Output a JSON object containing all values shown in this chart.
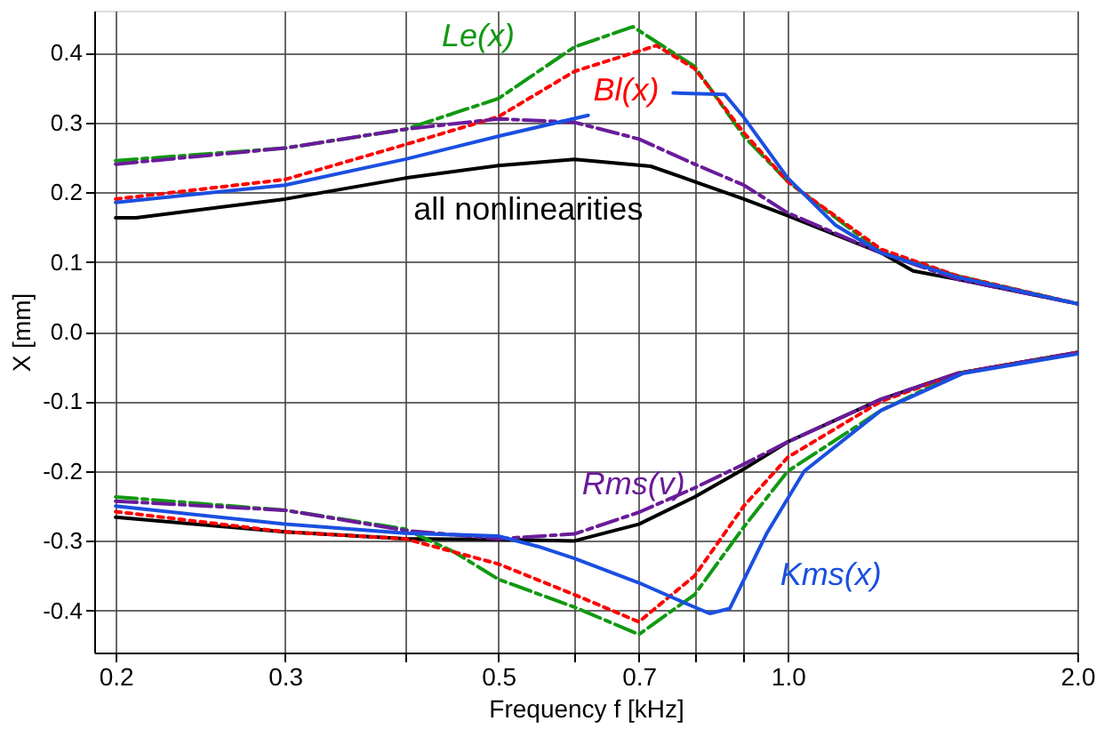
{
  "chart_data": {
    "type": "line",
    "xlabel": "Frequency f [kHz]",
    "ylabel": "X [mm]",
    "log": "x",
    "grid": true,
    "xlim": [
      0.19,
      2.0
    ],
    "ylim": [
      -0.46,
      0.46
    ],
    "xticks": [
      0.2,
      0.3,
      {
        "value": 0.4,
        "label": null
      },
      0.5,
      {
        "value": 0.6,
        "label": null
      },
      0.7,
      {
        "value": 0.8,
        "label": null
      },
      {
        "value": 0.9,
        "label": null
      },
      {
        "value": 1,
        "label": "1.0"
      },
      {
        "value": 2,
        "label": "2.0"
      }
    ],
    "yticks": [
      -0.4,
      -0.3,
      -0.2,
      -0.1,
      {
        "value": 0,
        "label": "0.0"
      },
      0.1,
      0.2,
      0.3,
      0.4
    ],
    "series": [
      {
        "name": "all nonlinearities",
        "color": "#000000",
        "line_style": "solid",
        "x": [
          0.2,
          0.21,
          0.3,
          0.4,
          0.5,
          0.6,
          0.72,
          0.8,
          0.9,
          1.0,
          1.25,
          1.35,
          1.5,
          2.0
        ],
        "values": [
          0.163,
          0.163,
          0.19,
          0.22,
          0.238,
          0.247,
          0.237,
          0.215,
          0.19,
          0.166,
          0.113,
          0.087,
          0.075,
          0.04
        ]
      },
      {
        "name": "Le(x)",
        "color": "#119911",
        "line_style": "dashed",
        "x": [
          0.2,
          0.3,
          0.4,
          0.5,
          0.6,
          0.69,
          0.8,
          0.9,
          1.0,
          1.25,
          1.5,
          2.0
        ],
        "values": [
          0.245,
          0.263,
          0.29,
          0.334,
          0.408,
          0.437,
          0.38,
          0.28,
          0.215,
          0.114,
          0.08,
          0.04
        ]
      },
      {
        "name": "Bl(x)",
        "color": "#ff0000",
        "line_style": "dotted",
        "x": [
          0.2,
          0.3,
          0.4,
          0.5,
          0.6,
          0.73,
          0.8,
          0.9,
          1.0,
          1.25,
          1.5,
          2.0
        ],
        "values": [
          0.19,
          0.218,
          0.268,
          0.308,
          0.373,
          0.41,
          0.377,
          0.285,
          0.215,
          0.118,
          0.08,
          0.04
        ]
      },
      {
        "color": "#6a1b9a",
        "line_style": "dashed",
        "x": [
          0.2,
          0.3,
          0.4,
          0.5,
          0.6,
          0.7,
          0.8,
          0.9,
          1.0,
          1.25,
          1.5,
          2.0
        ],
        "values": [
          0.24,
          0.263,
          0.29,
          0.305,
          0.3,
          0.276,
          0.24,
          0.21,
          0.17,
          0.113,
          0.075,
          0.04
        ]
      },
      {
        "color": "#1a4fe0",
        "line_style": "solid",
        "x": [
          0.2,
          0.3,
          0.4,
          0.5,
          0.62,
          0.7,
          0.76,
          0.86,
          0.9,
          1.0,
          1.12,
          1.25,
          1.5,
          2.0
        ],
        "values": [
          0.185,
          0.21,
          0.247,
          0.28,
          0.31,
          null,
          0.342,
          0.34,
          0.307,
          0.22,
          0.153,
          0.113,
          0.078,
          0.04
        ]
      },
      {
        "color": "#000000",
        "line_style": "solid",
        "x": [
          0.2,
          0.3,
          0.4,
          0.5,
          0.6,
          0.7,
          0.8,
          0.9,
          1.0,
          1.25,
          1.5,
          2.0
        ],
        "values": [
          -0.266,
          -0.287,
          -0.297,
          -0.298,
          -0.3,
          -0.276,
          -0.237,
          -0.197,
          -0.158,
          -0.097,
          -0.06,
          -0.03
        ]
      },
      {
        "color": "#119911",
        "line_style": "dashed",
        "x": [
          0.2,
          0.3,
          0.4,
          0.45,
          0.5,
          0.6,
          0.7,
          0.8,
          0.9,
          1.0,
          1.25,
          1.5,
          2.0
        ],
        "values": [
          -0.237,
          -0.256,
          -0.283,
          -0.316,
          -0.355,
          -0.395,
          -0.434,
          -0.377,
          -0.28,
          -0.2,
          -0.113,
          -0.06,
          -0.03
        ]
      },
      {
        "color": "#ff0000",
        "line_style": "dotted",
        "x": [
          0.2,
          0.3,
          0.4,
          0.5,
          0.6,
          0.7,
          0.8,
          0.9,
          1.0,
          1.25,
          1.5,
          2.0
        ],
        "values": [
          -0.258,
          -0.287,
          -0.297,
          -0.333,
          -0.377,
          -0.416,
          -0.35,
          -0.25,
          -0.18,
          -0.1,
          -0.06,
          -0.03
        ]
      },
      {
        "name": "Rms(v)",
        "color": "#6a1b9a",
        "line_style": "dashed",
        "x": [
          0.2,
          0.3,
          0.4,
          0.5,
          0.6,
          0.7,
          0.8,
          0.9,
          1.0,
          1.25,
          1.5,
          2.0
        ],
        "values": [
          -0.243,
          -0.256,
          -0.285,
          -0.297,
          -0.29,
          -0.259,
          -0.224,
          -0.19,
          -0.158,
          -0.097,
          -0.06,
          -0.03
        ]
      },
      {
        "name": "Kms(x)",
        "color": "#1a4fe0",
        "line_style": "solid",
        "x": [
          0.2,
          0.3,
          0.4,
          0.5,
          0.55,
          0.6,
          0.7,
          0.8,
          0.83,
          0.87,
          0.95,
          1.04,
          1.25,
          1.52,
          2.0
        ],
        "values": [
          -0.25,
          -0.276,
          -0.289,
          -0.293,
          -0.308,
          -0.325,
          -0.36,
          -0.395,
          -0.404,
          -0.397,
          -0.29,
          -0.2,
          -0.113,
          -0.06,
          -0.032
        ]
      }
    ]
  }
}
